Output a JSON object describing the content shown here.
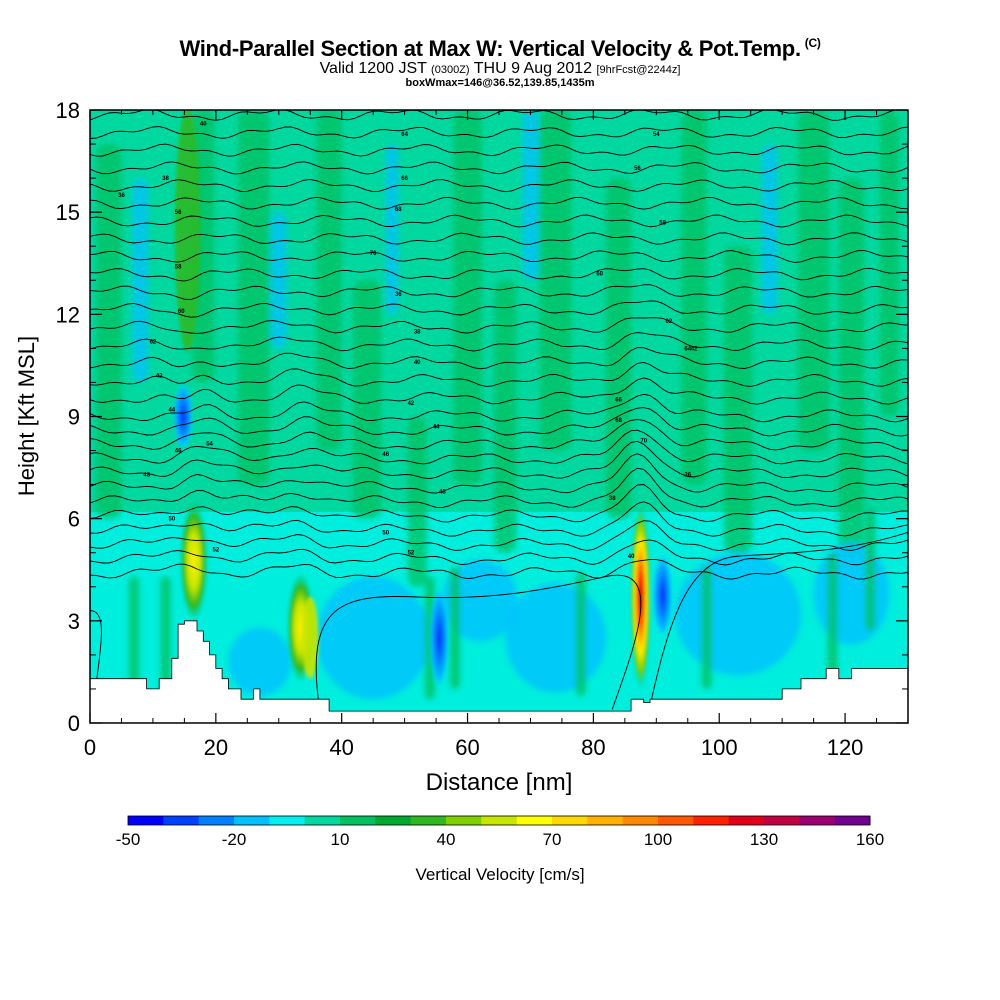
{
  "title": {
    "main": "Wind-Parallel Section at Max W: Vertical Velocity & Pot.Temp.",
    "copyright": "(C)",
    "valid_prefix": "Valid 1200 JST",
    "valid_utc": "(0300Z)",
    "valid_suffix": "THU 9 Aug 2012",
    "forecast": "[9hrFcst@2244z]",
    "box": "boxWmax=146@36.52,139.85,1435m"
  },
  "chart_data": {
    "type": "heatmap",
    "xlabel": "Distance [nm]",
    "ylabel": "Height [Kft MSL]",
    "xlim": [
      0,
      130
    ],
    "ylim": [
      0,
      18
    ],
    "x_ticks": [
      "0",
      "20",
      "40",
      "60",
      "80",
      "100",
      "120"
    ],
    "y_ticks": [
      "0",
      "3",
      "6",
      "9",
      "12",
      "15",
      "18"
    ],
    "colorbar": {
      "label": "Vertical Velocity [cm/s]",
      "tick_labels": [
        "-50",
        "-20",
        "10",
        "40",
        "70",
        "100",
        "130",
        "160"
      ],
      "colors": [
        "#0000ff",
        "#0040ff",
        "#0080ff",
        "#00c0ff",
        "#00f0f0",
        "#00d8a0",
        "#00c060",
        "#00a830",
        "#30b820",
        "#80d000",
        "#c8e600",
        "#ffff00",
        "#ffd800",
        "#ffb000",
        "#ff8800",
        "#ff5800",
        "#ff2000",
        "#e0001a",
        "#c00040",
        "#9c0070",
        "#700090"
      ]
    },
    "updrafts": [
      {
        "x": 16.5,
        "y_bottom": 3.0,
        "y_top": 6.5,
        "peak_cm_s": 70
      },
      {
        "x": 33.5,
        "y_bottom": 1.2,
        "y_top": 4.4,
        "peak_cm_s": 55
      },
      {
        "x": 87.5,
        "y_bottom": 1.0,
        "y_top": 6.4,
        "peak_cm_s": 146
      }
    ],
    "downdrafts": [
      {
        "x": 14.8,
        "y_bottom": 8.0,
        "y_top": 10.0,
        "min_cm_s": -20
      },
      {
        "x": 91.0,
        "y_bottom": 2.5,
        "y_top": 5.0,
        "min_cm_s": -45
      },
      {
        "x": 55.5,
        "y_bottom": 1.0,
        "y_top": 4.0,
        "min_cm_s": -30
      }
    ],
    "isentrope_labels": [
      "36",
      "38",
      "40",
      "42",
      "44",
      "46",
      "48",
      "50",
      "52",
      "54",
      "56",
      "58",
      "60",
      "62",
      "64",
      "66",
      "68",
      "70"
    ]
  }
}
